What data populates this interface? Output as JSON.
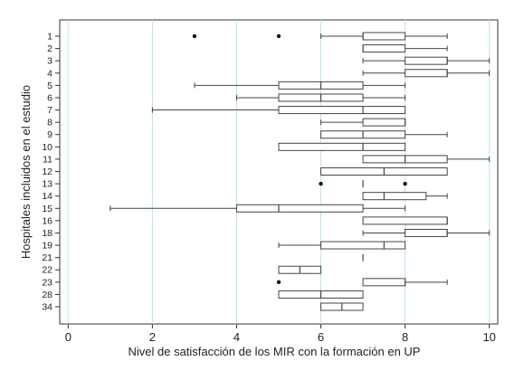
{
  "chart_data": {
    "type": "boxplot",
    "orientation": "horizontal",
    "xlabel": "Nivel de satisfacción de los MIR con la formación en UP",
    "ylabel": "Hospitales incluidos en el estudio",
    "xlim": [
      -0.2,
      10.2
    ],
    "xticks": [
      0,
      2,
      4,
      6,
      8,
      10
    ],
    "grid": "vertical-major",
    "colors": {
      "box": "#444444",
      "grid": "#b9e4ef",
      "outlier": "#111111"
    },
    "categories": [
      "1",
      "2",
      "3",
      "4",
      "5",
      "6",
      "7",
      "8",
      "9",
      "10",
      "11",
      "12",
      "13",
      "14",
      "15",
      "16",
      "18",
      "19",
      "21",
      "22",
      "23",
      "28",
      "34"
    ],
    "boxes": [
      {
        "label": "1",
        "whisker_low": 6,
        "q1": 7,
        "median": 7,
        "q3": 8,
        "whisker_high": 9,
        "outliers": [
          3,
          5
        ]
      },
      {
        "label": "2",
        "whisker_low": 7,
        "q1": 7,
        "median": 7,
        "q3": 8,
        "whisker_high": 9,
        "outliers": []
      },
      {
        "label": "3",
        "whisker_low": 7,
        "q1": 8,
        "median": 9,
        "q3": 9,
        "whisker_high": 10,
        "outliers": []
      },
      {
        "label": "4",
        "whisker_low": 7,
        "q1": 8,
        "median": 9,
        "q3": 9,
        "whisker_high": 10,
        "outliers": []
      },
      {
        "label": "5",
        "whisker_low": 3,
        "q1": 5,
        "median": 6,
        "q3": 7,
        "whisker_high": 8,
        "outliers": []
      },
      {
        "label": "6",
        "whisker_low": 4,
        "q1": 5,
        "median": 6,
        "q3": 7,
        "whisker_high": 8,
        "outliers": []
      },
      {
        "label": "7",
        "whisker_low": 2,
        "q1": 5,
        "median": 7,
        "q3": 8,
        "whisker_high": 8,
        "outliers": []
      },
      {
        "label": "8",
        "whisker_low": 6,
        "q1": 7,
        "median": 8,
        "q3": 8,
        "whisker_high": 8,
        "outliers": []
      },
      {
        "label": "9",
        "whisker_low": 6,
        "q1": 6,
        "median": 7,
        "q3": 8,
        "whisker_high": 9,
        "outliers": []
      },
      {
        "label": "10",
        "whisker_low": 5,
        "q1": 5,
        "median": 7,
        "q3": 8,
        "whisker_high": 8,
        "outliers": []
      },
      {
        "label": "11",
        "whisker_low": 7,
        "q1": 7,
        "median": 8,
        "q3": 9,
        "whisker_high": 10,
        "outliers": []
      },
      {
        "label": "12",
        "whisker_low": 6,
        "q1": 6,
        "median": 7.5,
        "q3": 9,
        "whisker_high": 9,
        "outliers": []
      },
      {
        "label": "13",
        "whisker_low": 7,
        "q1": 7,
        "median": 7,
        "q3": 7,
        "whisker_high": 7,
        "outliers": [
          6,
          8
        ]
      },
      {
        "label": "14",
        "whisker_low": 7,
        "q1": 7,
        "median": 7.5,
        "q3": 8.5,
        "whisker_high": 9,
        "outliers": []
      },
      {
        "label": "15",
        "whisker_low": 1,
        "q1": 4,
        "median": 5,
        "q3": 7,
        "whisker_high": 8,
        "outliers": []
      },
      {
        "label": "16",
        "whisker_low": 7,
        "q1": 7,
        "median": 9,
        "q3": 9,
        "whisker_high": 9,
        "outliers": []
      },
      {
        "label": "18",
        "whisker_low": 7,
        "q1": 8,
        "median": 9,
        "q3": 9,
        "whisker_high": 10,
        "outliers": []
      },
      {
        "label": "19",
        "whisker_low": 5,
        "q1": 6,
        "median": 7.5,
        "q3": 8,
        "whisker_high": 8,
        "outliers": []
      },
      {
        "label": "21",
        "whisker_low": 7,
        "q1": 7,
        "median": 7,
        "q3": 7,
        "whisker_high": 7,
        "outliers": []
      },
      {
        "label": "22",
        "whisker_low": 5,
        "q1": 5,
        "median": 5.5,
        "q3": 6,
        "whisker_high": 6,
        "outliers": []
      },
      {
        "label": "23",
        "whisker_low": 7,
        "q1": 7,
        "median": 8,
        "q3": 8,
        "whisker_high": 9,
        "outliers": [
          5
        ]
      },
      {
        "label": "28",
        "whisker_low": 5,
        "q1": 5,
        "median": 6,
        "q3": 7,
        "whisker_high": 7,
        "outliers": []
      },
      {
        "label": "34",
        "whisker_low": 6,
        "q1": 6,
        "median": 6.5,
        "q3": 7,
        "whisker_high": 7,
        "outliers": []
      }
    ]
  }
}
